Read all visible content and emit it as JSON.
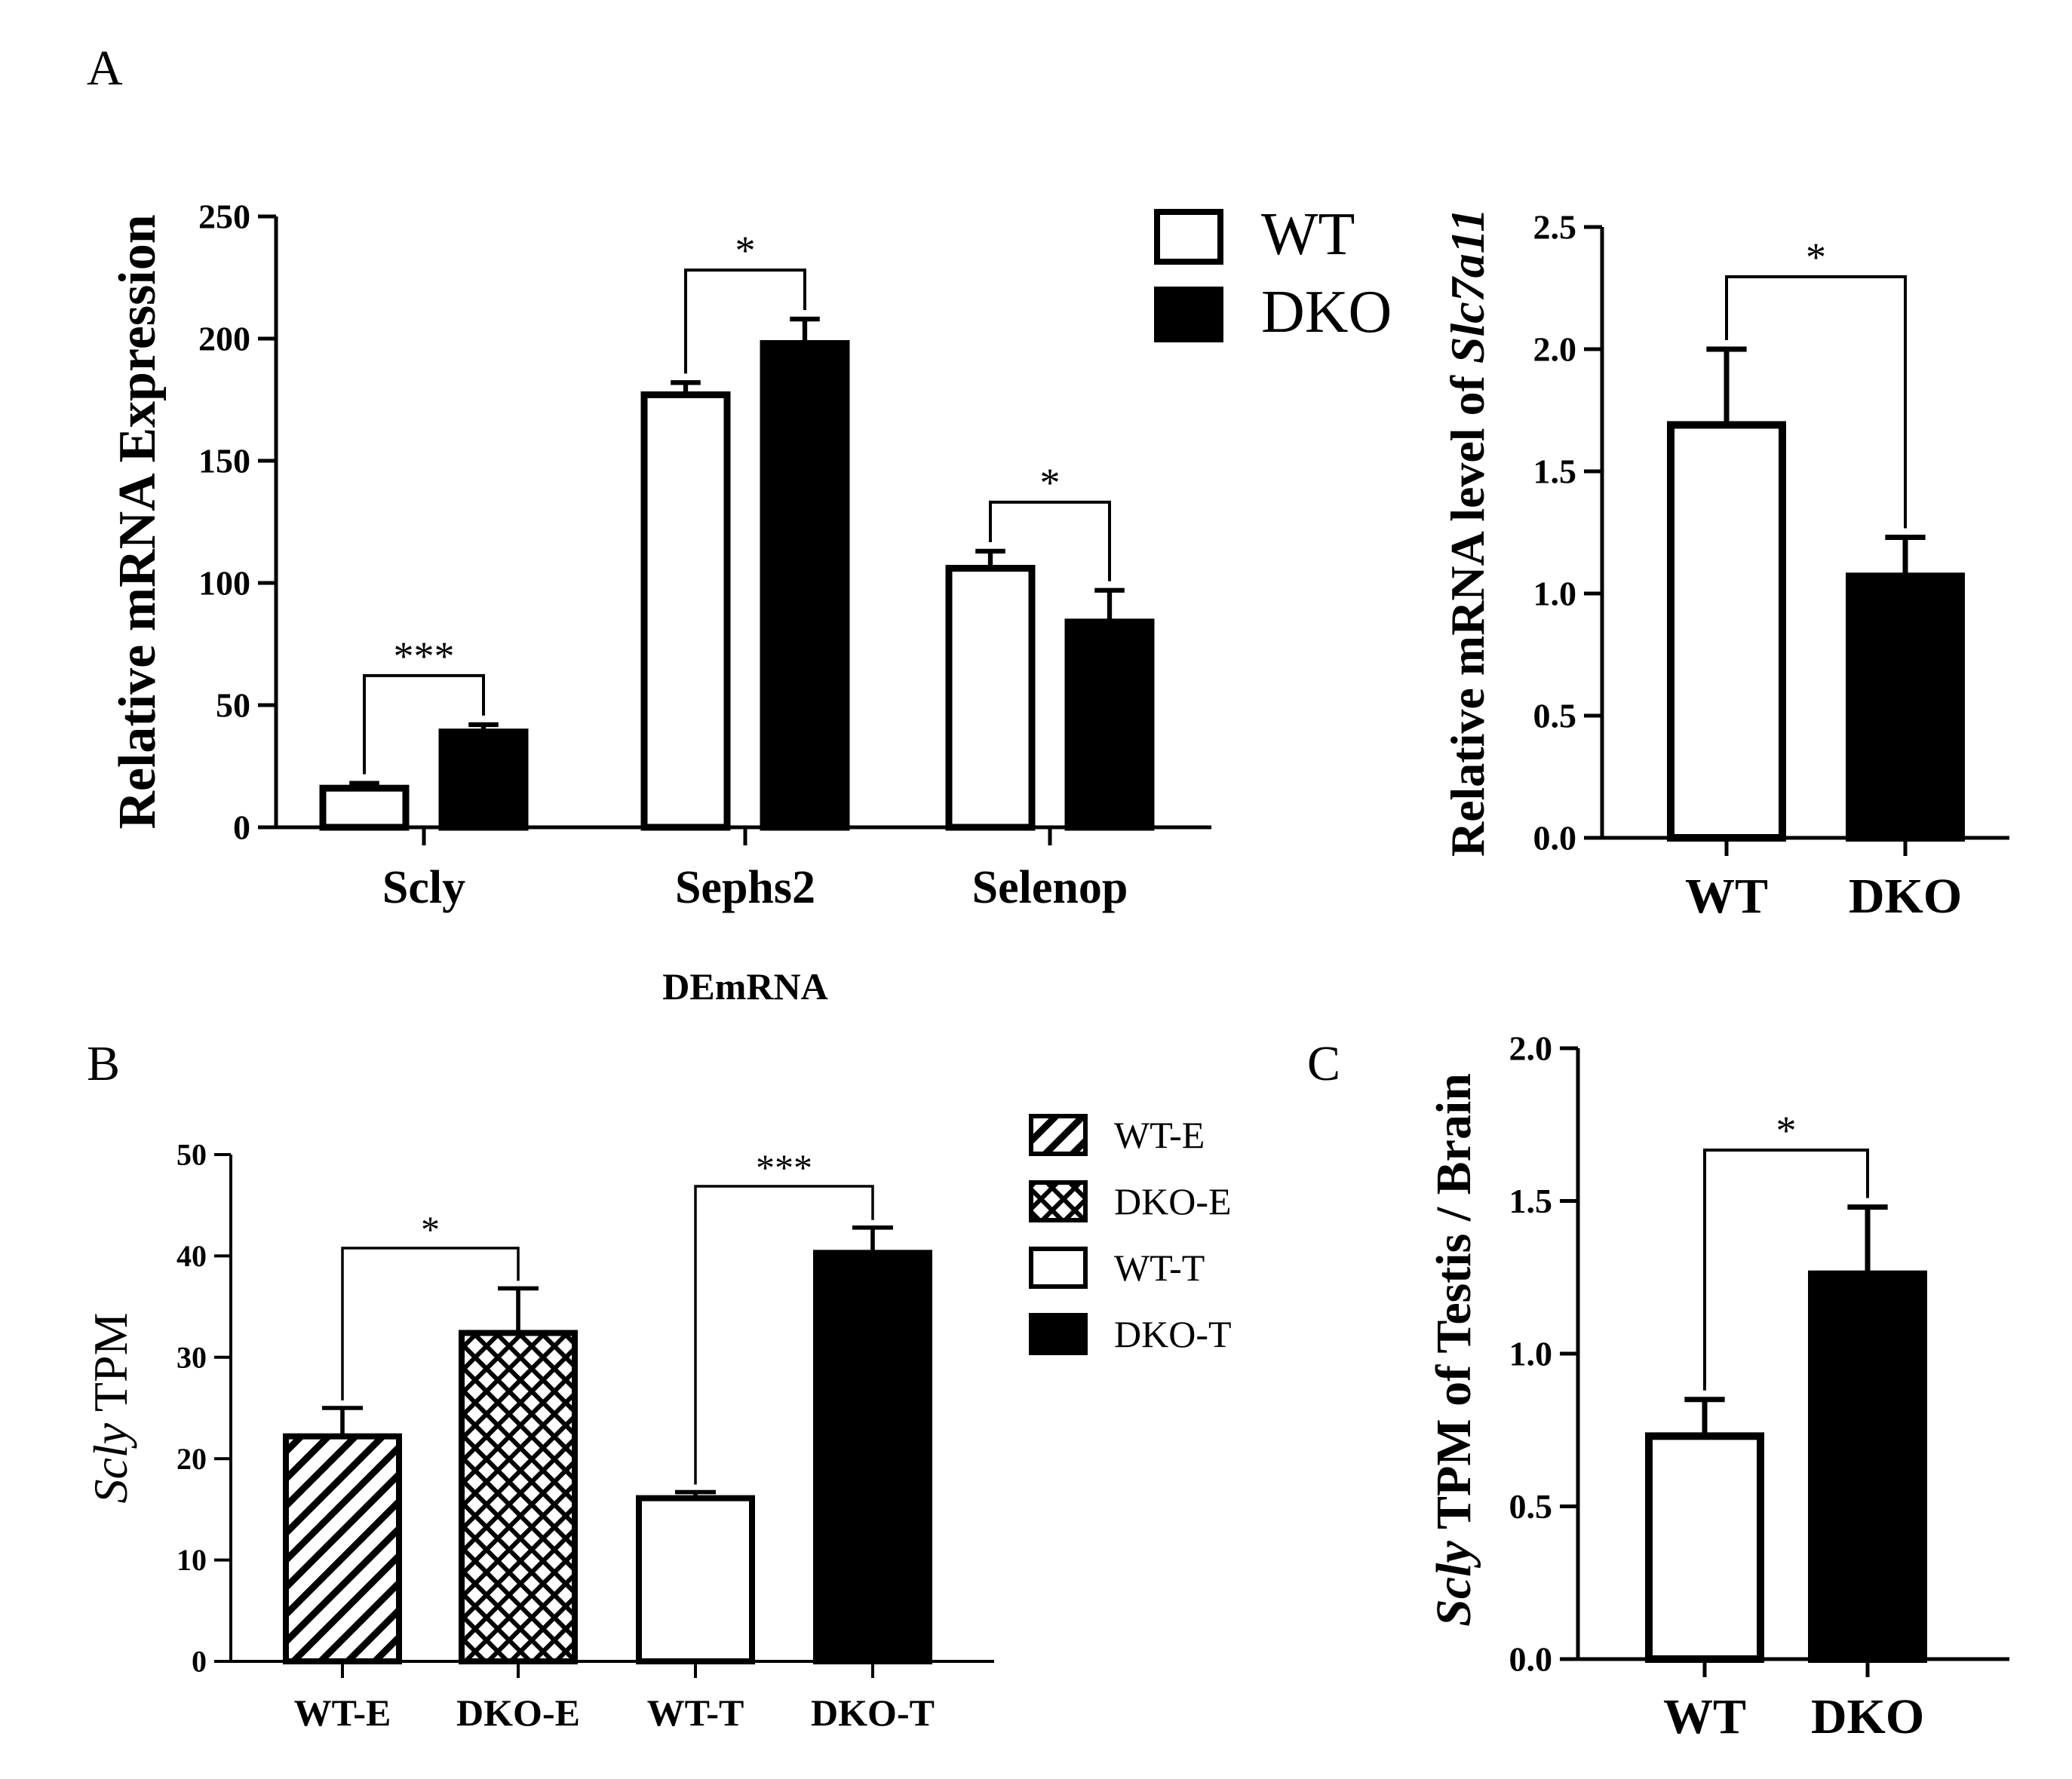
{
  "chart_data": [
    {
      "panel": "A",
      "type": "bar",
      "title": "",
      "xlabel": "DEmRNA",
      "ylabel": "Relative mRNA Expression",
      "ylim": [
        0,
        250
      ],
      "yticks": [
        "0",
        "50",
        "100",
        "150",
        "200",
        "250"
      ],
      "categories": [
        "Scly",
        "Sephs2",
        "Selenop"
      ],
      "series": [
        {
          "name": "WT",
          "fill": "white",
          "values": [
            16,
            177,
            106
          ],
          "errors": [
            2,
            5,
            7
          ]
        },
        {
          "name": "DKO",
          "fill": "black",
          "values": [
            39,
            198,
            84
          ],
          "errors": [
            3,
            10,
            13
          ]
        }
      ],
      "significance": [
        "***",
        "*",
        "*"
      ],
      "legend": [
        "WT",
        "DKO"
      ],
      "legend_position": "top-right"
    },
    {
      "panel": "A-right",
      "type": "bar",
      "title": "",
      "xlabel": "",
      "ylabel_prefix": "Relative mRNA level of ",
      "ylabel_gene": "Slc7a11",
      "ylim": [
        0,
        2.5
      ],
      "yticks": [
        "0.0",
        "0.5",
        "1.0",
        "1.5",
        "2.0",
        "2.5"
      ],
      "categories": [
        "WT",
        "DKO"
      ],
      "fills": [
        "white",
        "black"
      ],
      "values": [
        1.69,
        1.07
      ],
      "errors": [
        0.31,
        0.16
      ],
      "significance": [
        "*"
      ]
    },
    {
      "panel": "B",
      "type": "bar",
      "title": "",
      "xlabel": "",
      "ylabel_gene": "Scly",
      "ylabel_suffix": " TPM",
      "ylim": [
        0,
        50
      ],
      "yticks": [
        "0",
        "10",
        "20",
        "30",
        "40",
        "50"
      ],
      "categories": [
        "WT-E",
        "DKO-E",
        "WT-T",
        "DKO-T"
      ],
      "fills": [
        "diagonal-hatch",
        "cross-hatch",
        "white",
        "black"
      ],
      "values": [
        22.2,
        32.4,
        16.1,
        40.3
      ],
      "errors": [
        2.8,
        4.4,
        0.6,
        2.5
      ],
      "significance": [
        {
          "label": "*",
          "from": "WT-E",
          "to": "DKO-E"
        },
        {
          "label": "***",
          "from": "WT-T",
          "to": "DKO-T"
        }
      ],
      "legend": [
        "WT-E",
        "DKO-E",
        "WT-T",
        "DKO-T"
      ],
      "legend_position": "right"
    },
    {
      "panel": "C",
      "type": "bar",
      "title": "",
      "xlabel": "",
      "ylabel_gene": "Scly",
      "ylabel_suffix": " TPM of Testis / Brain",
      "ylim": [
        0,
        2.0
      ],
      "yticks": [
        "0.0",
        "0.5",
        "1.0",
        "1.5",
        "2.0"
      ],
      "categories": [
        "WT",
        "DKO"
      ],
      "fills": [
        "white",
        "black"
      ],
      "values": [
        0.73,
        1.26
      ],
      "errors": [
        0.12,
        0.22
      ],
      "significance": [
        "*"
      ]
    }
  ]
}
